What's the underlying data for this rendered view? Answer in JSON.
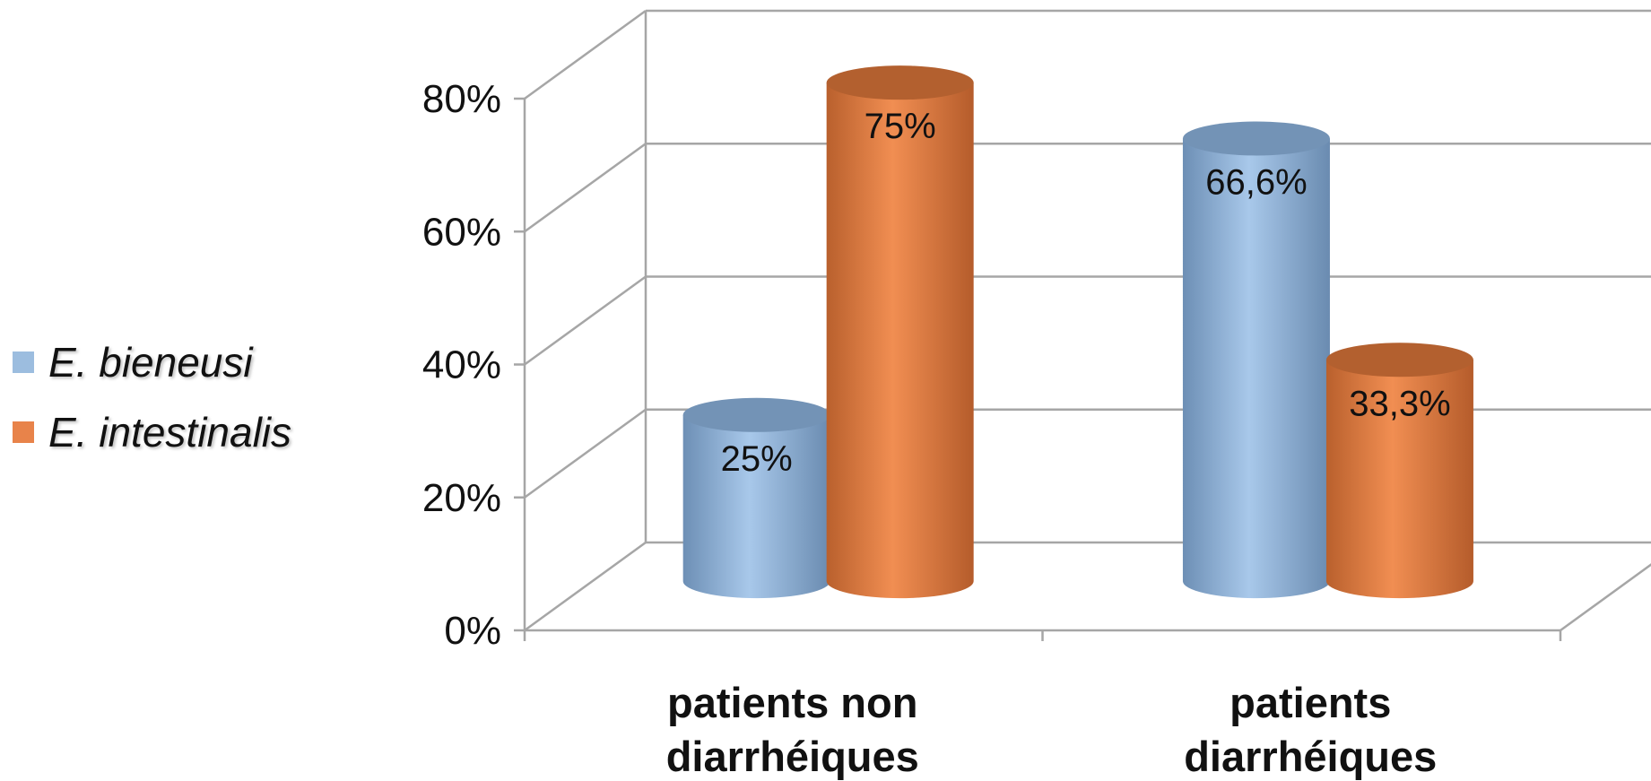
{
  "chart_data": {
    "type": "bar",
    "style": "3d-cylinder",
    "categories": [
      [
        "patients non",
        "diarrhéiques"
      ],
      [
        "patients",
        "diarrhéiques"
      ]
    ],
    "series": [
      {
        "name": "E. bieneusi",
        "color": "#9cbddf",
        "values": [
          25,
          66.6
        ],
        "labels": [
          "25%",
          "66,6%"
        ]
      },
      {
        "name": "E. intestinalis",
        "color": "#e8834a",
        "values": [
          75,
          33.3
        ],
        "labels": [
          "75%",
          "33,3%"
        ]
      }
    ],
    "ylim": [
      0,
      80
    ],
    "yticks": [
      0,
      20,
      40,
      60,
      80
    ],
    "ytick_labels": [
      "0%",
      "20%",
      "40%",
      "60%",
      "80%"
    ],
    "grid": true,
    "legend_position": "left"
  }
}
